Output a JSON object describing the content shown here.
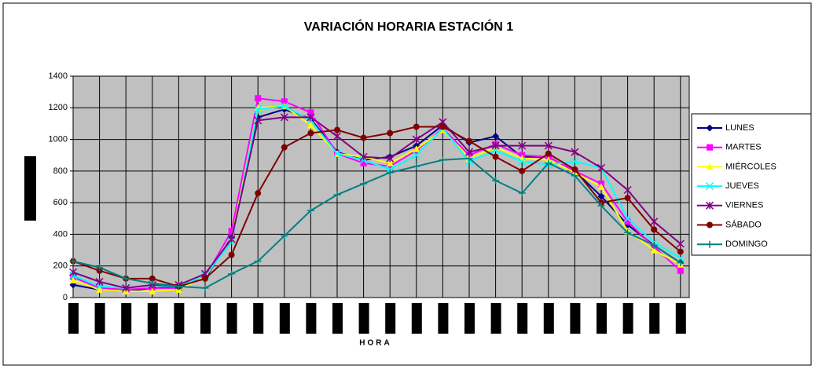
{
  "chart_data": {
    "type": "line",
    "title": "VARIACIÓN HORARIA ESTACIÓN 1",
    "x_label": "HORA",
    "categories": [
      null,
      null,
      null,
      null,
      null,
      null,
      null,
      null,
      null,
      null,
      null,
      null,
      null,
      null,
      null,
      null,
      null,
      null,
      null,
      null,
      null,
      null,
      null,
      null
    ],
    "ylim": [
      0,
      1400
    ],
    "yticks": [
      0,
      200,
      400,
      600,
      800,
      1000,
      1200,
      1400
    ],
    "grid": true,
    "legend": "right",
    "series": [
      {
        "name": "LUNES",
        "color": "#000080",
        "marker": "diamond",
        "values": [
          80,
          50,
          40,
          60,
          70,
          120,
          380,
          1140,
          1190,
          1130,
          920,
          870,
          890,
          960,
          1090,
          980,
          1020,
          890,
          890,
          800,
          640,
          460,
          330,
          220
        ]
      },
      {
        "name": "MARTES",
        "color": "#ff00ff",
        "marker": "square",
        "values": [
          130,
          60,
          50,
          60,
          60,
          130,
          420,
          1260,
          1240,
          1170,
          910,
          850,
          830,
          930,
          1070,
          900,
          970,
          900,
          890,
          800,
          720,
          480,
          320,
          170
        ]
      },
      {
        "name": "MIÉRCOLES",
        "color": "#ffff00",
        "marker": "triangle",
        "values": [
          110,
          50,
          40,
          40,
          50,
          130,
          370,
          1200,
          1210,
          1090,
          910,
          890,
          850,
          940,
          1060,
          880,
          950,
          880,
          870,
          790,
          700,
          420,
          300,
          210
        ]
      },
      {
        "name": "JUEVES",
        "color": "#00ffff",
        "marker": "x",
        "values": [
          140,
          70,
          60,
          80,
          70,
          140,
          350,
          1190,
          1210,
          1120,
          910,
          870,
          810,
          900,
          1070,
          860,
          930,
          860,
          840,
          860,
          820,
          500,
          350,
          250
        ]
      },
      {
        "name": "VIERNES",
        "color": "#800080",
        "marker": "star",
        "values": [
          160,
          100,
          60,
          80,
          80,
          150,
          370,
          1120,
          1140,
          1140,
          1020,
          890,
          880,
          1000,
          1110,
          920,
          960,
          960,
          960,
          920,
          820,
          680,
          480,
          340
        ]
      },
      {
        "name": "SÁBADO",
        "color": "#800000",
        "marker": "circle",
        "values": [
          230,
          170,
          120,
          120,
          70,
          120,
          270,
          660,
          950,
          1040,
          1060,
          1010,
          1040,
          1080,
          1080,
          990,
          890,
          800,
          910,
          810,
          600,
          630,
          430,
          290
        ]
      },
      {
        "name": "DOMINGO",
        "color": "#008080",
        "marker": "plus",
        "values": [
          230,
          190,
          120,
          90,
          70,
          60,
          150,
          230,
          390,
          550,
          650,
          720,
          790,
          830,
          870,
          880,
          740,
          660,
          850,
          770,
          580,
          410,
          330,
          220
        ]
      }
    ]
  }
}
